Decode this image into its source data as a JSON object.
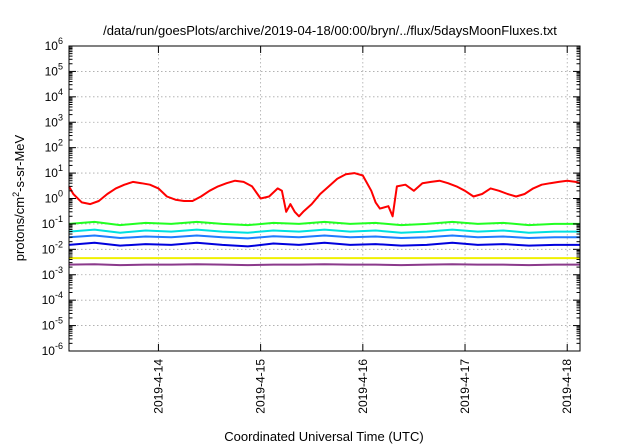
{
  "chart_data": {
    "type": "line",
    "title": "/data/run/goesPlots/archive/2019-04-18/00:00/bryn/../flux/5daysMoonFluxes.txt",
    "xlabel": "Coordinated Universal Time (UTC)",
    "ylabel_parts": [
      "protons/cm",
      "2",
      "-s-sr-MeV"
    ],
    "yscale": "log",
    "ylim": [
      1e-06,
      1000000.0
    ],
    "xlim": [
      "2019-04-13 03:00",
      "2019-04-18 03:00"
    ],
    "grid": true,
    "legend": "none",
    "y_tick_labels": [
      {
        "base": "10",
        "exp": "-6"
      },
      {
        "base": "10",
        "exp": "-5"
      },
      {
        "base": "10",
        "exp": "-4"
      },
      {
        "base": "10",
        "exp": "-3"
      },
      {
        "base": "10",
        "exp": "-2"
      },
      {
        "base": "10",
        "exp": "-1"
      },
      {
        "base": "10",
        "exp": "0"
      },
      {
        "base": "10",
        "exp": "1"
      },
      {
        "base": "10",
        "exp": "2"
      },
      {
        "base": "10",
        "exp": "3"
      },
      {
        "base": "10",
        "exp": "4"
      },
      {
        "base": "10",
        "exp": "5"
      },
      {
        "base": "10",
        "exp": "6"
      }
    ],
    "x_ticks": [
      {
        "label": "2019-4-14",
        "t": "2019-04-14 00:00"
      },
      {
        "label": "2019-4-15",
        "t": "2019-04-15 00:00"
      },
      {
        "label": "2019-4-16",
        "t": "2019-04-16 00:00"
      },
      {
        "label": "2019-4-17",
        "t": "2019-04-17 00:00"
      },
      {
        "label": "2019-4-18",
        "t": "2019-04-18 00:00"
      }
    ],
    "series": [
      {
        "color": "#ff0000",
        "x": [
          "2019-04-13 03:00",
          "2019-04-13 04:00",
          "2019-04-13 06:00",
          "2019-04-13 08:00",
          "2019-04-13 10:00",
          "2019-04-13 12:00",
          "2019-04-13 14:00",
          "2019-04-13 16:00",
          "2019-04-13 18:00",
          "2019-04-13 20:00",
          "2019-04-13 22:00",
          "2019-04-14 00:00",
          "2019-04-14 02:00",
          "2019-04-14 04:00",
          "2019-04-14 06:00",
          "2019-04-14 08:00",
          "2019-04-14 10:00",
          "2019-04-14 12:00",
          "2019-04-14 14:00",
          "2019-04-14 16:00",
          "2019-04-14 18:00",
          "2019-04-14 20:00",
          "2019-04-14 22:00",
          "2019-04-15 00:00",
          "2019-04-15 02:00",
          "2019-04-15 04:00",
          "2019-04-15 05:00",
          "2019-04-15 06:00",
          "2019-04-15 07:00",
          "2019-04-15 08:00",
          "2019-04-15 09:00",
          "2019-04-15 10:00",
          "2019-04-15 12:00",
          "2019-04-15 14:00",
          "2019-04-15 16:00",
          "2019-04-15 18:00",
          "2019-04-15 20:00",
          "2019-04-15 22:00",
          "2019-04-16 00:00",
          "2019-04-16 02:00",
          "2019-04-16 03:00",
          "2019-04-16 04:00",
          "2019-04-16 06:00",
          "2019-04-16 07:00",
          "2019-04-16 08:00",
          "2019-04-16 10:00",
          "2019-04-16 12:00",
          "2019-04-16 14:00",
          "2019-04-16 16:00",
          "2019-04-16 18:00",
          "2019-04-16 20:00",
          "2019-04-16 22:00",
          "2019-04-17 00:00",
          "2019-04-17 02:00",
          "2019-04-17 04:00",
          "2019-04-17 06:00",
          "2019-04-17 08:00",
          "2019-04-17 10:00",
          "2019-04-17 12:00",
          "2019-04-17 14:00",
          "2019-04-17 16:00",
          "2019-04-17 18:00",
          "2019-04-17 20:00",
          "2019-04-17 22:00",
          "2019-04-18 00:00",
          "2019-04-18 02:00",
          "2019-04-18 03:00"
        ],
        "y": [
          3.0,
          1.5,
          0.7,
          0.6,
          0.8,
          1.5,
          2.5,
          3.5,
          4.5,
          4.0,
          3.5,
          2.5,
          1.2,
          0.9,
          0.8,
          0.8,
          1.2,
          2.0,
          3.0,
          4.0,
          5.0,
          4.5,
          3.0,
          1.0,
          1.2,
          2.5,
          2.0,
          0.3,
          0.6,
          0.3,
          0.2,
          0.3,
          0.6,
          1.5,
          3.0,
          6.0,
          9.0,
          10.0,
          8.0,
          2.0,
          0.7,
          0.4,
          0.5,
          0.2,
          3.0,
          3.5,
          2.0,
          4.0,
          4.5,
          5.0,
          4.0,
          3.0,
          2.0,
          1.2,
          1.5,
          2.5,
          2.0,
          1.5,
          1.2,
          1.5,
          2.5,
          3.5,
          4.0,
          4.5,
          5.0,
          4.5,
          4.0
        ]
      },
      {
        "color": "#22ff22",
        "x": [
          "2019-04-13 03:00",
          "2019-04-13 09:00",
          "2019-04-13 15:00",
          "2019-04-13 21:00",
          "2019-04-14 03:00",
          "2019-04-14 09:00",
          "2019-04-14 15:00",
          "2019-04-14 21:00",
          "2019-04-15 03:00",
          "2019-04-15 09:00",
          "2019-04-15 15:00",
          "2019-04-15 21:00",
          "2019-04-16 03:00",
          "2019-04-16 09:00",
          "2019-04-16 15:00",
          "2019-04-16 21:00",
          "2019-04-17 03:00",
          "2019-04-17 09:00",
          "2019-04-17 15:00",
          "2019-04-17 21:00",
          "2019-04-18 03:00"
        ],
        "y": [
          0.1,
          0.12,
          0.09,
          0.11,
          0.1,
          0.12,
          0.1,
          0.09,
          0.11,
          0.1,
          0.12,
          0.1,
          0.11,
          0.09,
          0.1,
          0.12,
          0.1,
          0.11,
          0.09,
          0.1,
          0.1
        ]
      },
      {
        "color": "#00e0e0",
        "x": [
          "2019-04-13 03:00",
          "2019-04-13 09:00",
          "2019-04-13 15:00",
          "2019-04-13 21:00",
          "2019-04-14 03:00",
          "2019-04-14 09:00",
          "2019-04-14 15:00",
          "2019-04-14 21:00",
          "2019-04-15 03:00",
          "2019-04-15 09:00",
          "2019-04-15 15:00",
          "2019-04-15 21:00",
          "2019-04-16 03:00",
          "2019-04-16 09:00",
          "2019-04-16 15:00",
          "2019-04-16 21:00",
          "2019-04-17 03:00",
          "2019-04-17 09:00",
          "2019-04-17 15:00",
          "2019-04-17 21:00",
          "2019-04-18 03:00"
        ],
        "y": [
          0.05,
          0.06,
          0.045,
          0.055,
          0.05,
          0.06,
          0.05,
          0.045,
          0.055,
          0.05,
          0.06,
          0.05,
          0.055,
          0.045,
          0.05,
          0.06,
          0.05,
          0.055,
          0.045,
          0.05,
          0.05
        ]
      },
      {
        "color": "#1e7bff",
        "x": [
          "2019-04-13 03:00",
          "2019-04-13 09:00",
          "2019-04-13 15:00",
          "2019-04-13 21:00",
          "2019-04-14 03:00",
          "2019-04-14 09:00",
          "2019-04-14 15:00",
          "2019-04-14 21:00",
          "2019-04-15 03:00",
          "2019-04-15 09:00",
          "2019-04-15 15:00",
          "2019-04-15 21:00",
          "2019-04-16 03:00",
          "2019-04-16 09:00",
          "2019-04-16 15:00",
          "2019-04-16 21:00",
          "2019-04-17 03:00",
          "2019-04-17 09:00",
          "2019-04-17 15:00",
          "2019-04-17 21:00",
          "2019-04-18 03:00"
        ],
        "y": [
          0.03,
          0.035,
          0.028,
          0.032,
          0.03,
          0.035,
          0.03,
          0.027,
          0.033,
          0.03,
          0.035,
          0.03,
          0.032,
          0.028,
          0.03,
          0.035,
          0.03,
          0.032,
          0.028,
          0.03,
          0.03
        ]
      },
      {
        "color": "#0000dd",
        "x": [
          "2019-04-13 03:00",
          "2019-04-13 09:00",
          "2019-04-13 15:00",
          "2019-04-13 21:00",
          "2019-04-14 03:00",
          "2019-04-14 09:00",
          "2019-04-14 15:00",
          "2019-04-14 21:00",
          "2019-04-15 03:00",
          "2019-04-15 09:00",
          "2019-04-15 15:00",
          "2019-04-15 21:00",
          "2019-04-16 03:00",
          "2019-04-16 09:00",
          "2019-04-16 15:00",
          "2019-04-16 21:00",
          "2019-04-17 03:00",
          "2019-04-17 09:00",
          "2019-04-17 15:00",
          "2019-04-17 21:00",
          "2019-04-18 03:00"
        ],
        "y": [
          0.015,
          0.018,
          0.014,
          0.016,
          0.015,
          0.018,
          0.015,
          0.013,
          0.017,
          0.015,
          0.018,
          0.015,
          0.016,
          0.014,
          0.015,
          0.018,
          0.015,
          0.016,
          0.014,
          0.015,
          0.015
        ]
      },
      {
        "color": "#f0f000",
        "x": [
          "2019-04-13 03:00",
          "2019-04-14 03:00",
          "2019-04-15 03:00",
          "2019-04-16 03:00",
          "2019-04-17 03:00",
          "2019-04-18 03:00"
        ],
        "y": [
          0.0045,
          0.0045,
          0.0045,
          0.0045,
          0.0045,
          0.0045
        ]
      },
      {
        "color": "#8b3a8b",
        "x": [
          "2019-04-13 03:00",
          "2019-04-13 09:00",
          "2019-04-13 15:00",
          "2019-04-13 21:00",
          "2019-04-14 03:00",
          "2019-04-14 09:00",
          "2019-04-14 15:00",
          "2019-04-14 21:00",
          "2019-04-15 03:00",
          "2019-04-15 09:00",
          "2019-04-15 15:00",
          "2019-04-15 21:00",
          "2019-04-16 03:00",
          "2019-04-16 09:00",
          "2019-04-16 15:00",
          "2019-04-16 21:00",
          "2019-04-17 03:00",
          "2019-04-17 09:00",
          "2019-04-17 15:00",
          "2019-04-17 21:00",
          "2019-04-18 03:00"
        ],
        "y": [
          0.0025,
          0.0026,
          0.0024,
          0.0025,
          0.0025,
          0.0026,
          0.0025,
          0.0024,
          0.0025,
          0.0025,
          0.0026,
          0.0025,
          0.0025,
          0.0024,
          0.0025,
          0.0026,
          0.0025,
          0.0025,
          0.0024,
          0.0025,
          0.0025
        ]
      }
    ]
  }
}
